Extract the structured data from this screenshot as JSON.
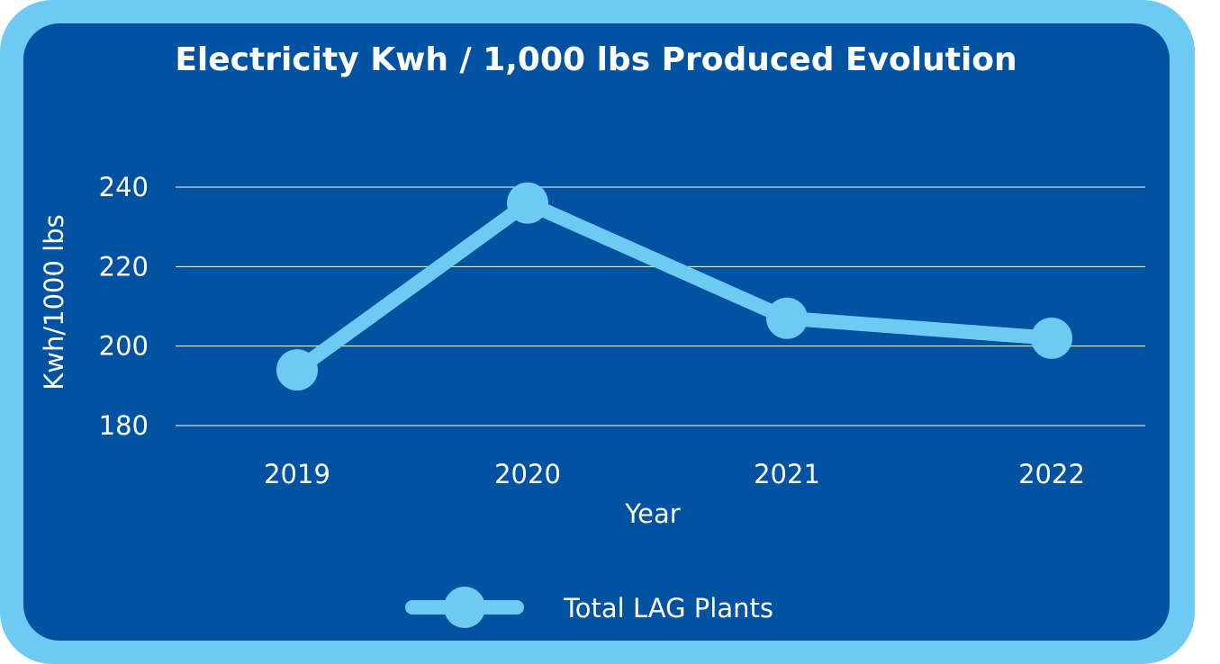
{
  "colors": {
    "frame": "#6dcbf3",
    "panel": "#0152a1",
    "series": "#6dcbf3",
    "text": "#ffffff",
    "grid": "#ffffff"
  },
  "chart_data": {
    "type": "line",
    "title": "Electricity Kwh / 1,000 lbs Produced Evolution",
    "xlabel": "Year",
    "ylabel": "Kwh/1000 lbs",
    "categories": [
      "2019",
      "2020",
      "2021",
      "2022"
    ],
    "series": [
      {
        "name": "Total LAG Plants",
        "values": [
          194,
          236,
          207,
          202
        ]
      }
    ],
    "ylim": [
      180,
      240
    ],
    "yticks": [
      "180",
      "200",
      "220",
      "240"
    ],
    "grid": true,
    "legend": "bottom-center"
  }
}
